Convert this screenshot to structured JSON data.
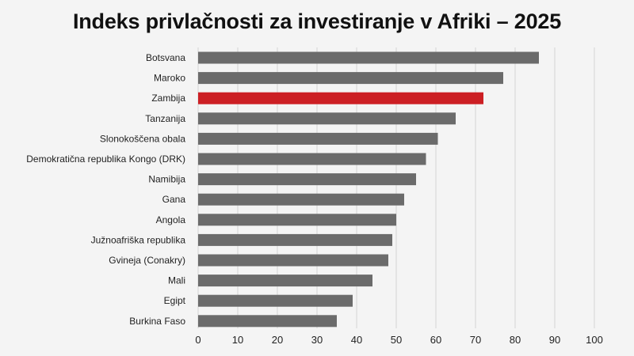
{
  "chart_data": {
    "type": "bar",
    "orientation": "horizontal",
    "title": "Indeks privlačnosti za investiranje v Afriki – 2025",
    "xlabel": "",
    "ylabel": "",
    "xlim": [
      0,
      100
    ],
    "xticks": [
      0,
      10,
      20,
      30,
      40,
      50,
      60,
      70,
      80,
      90,
      100
    ],
    "grid": true,
    "categories": [
      "Botsvana",
      "Maroko",
      "Zambija",
      "Tanzanija",
      "Slonokoščena obala",
      "Demokratična republika Kongo (DRK)",
      "Namibija",
      "Gana",
      "Angola",
      "Južnoafriška republika",
      "Gvineja (Conakry)",
      "Mali",
      "Egipt",
      "Burkina Faso"
    ],
    "values": [
      86,
      77,
      72,
      65,
      60.5,
      57.5,
      55,
      52,
      50,
      49,
      48,
      44,
      39,
      35
    ],
    "highlight_index": 2,
    "colors": {
      "bar": "#6b6b6b",
      "highlight": "#cc1f24",
      "grid": "#d4d4d4"
    }
  }
}
